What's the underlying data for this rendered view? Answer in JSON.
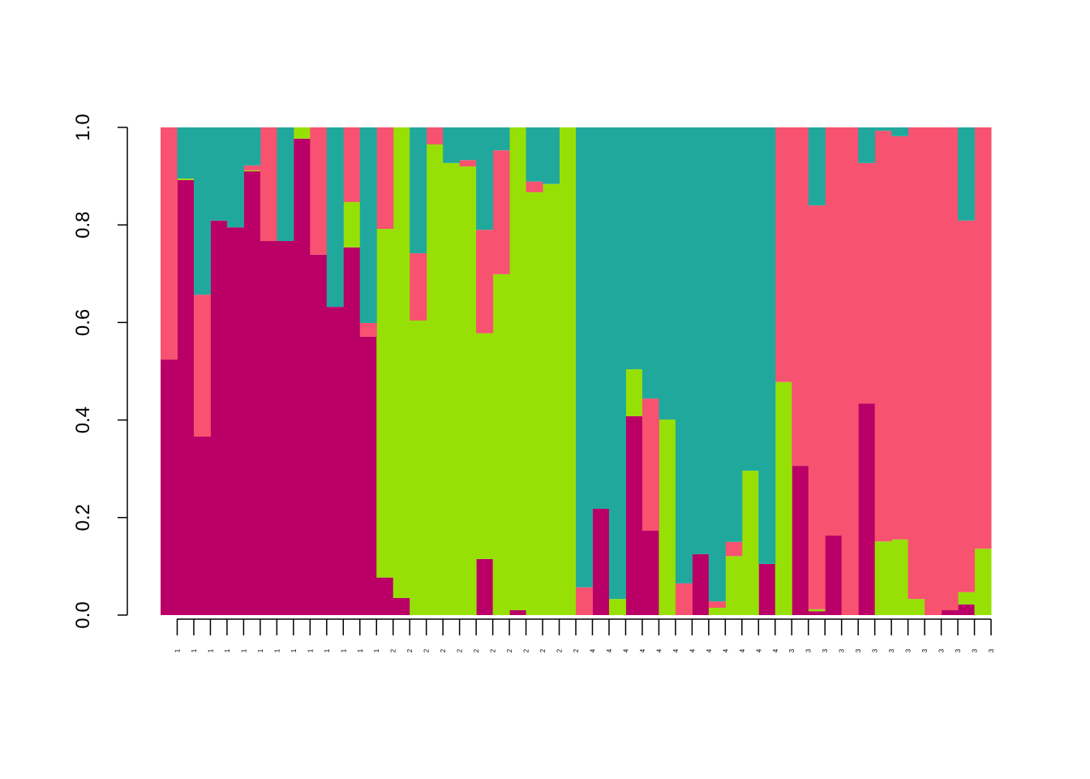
{
  "chart_data": {
    "type": "stacked_bar",
    "categories": [
      "1",
      "1",
      "1",
      "1",
      "1",
      "1",
      "1",
      "1",
      "1",
      "1",
      "1",
      "1",
      "1",
      "2",
      "2",
      "2",
      "2",
      "2",
      "2",
      "2",
      "2",
      "2",
      "2",
      "2",
      "2",
      "4",
      "4",
      "4",
      "4",
      "4",
      "4",
      "4",
      "4",
      "4",
      "4",
      "4",
      "4",
      "3",
      "3",
      "3",
      "3",
      "3",
      "3",
      "3",
      "3",
      "3",
      "3",
      "3",
      "3",
      "3"
    ],
    "series": [
      {
        "color": "#BA0066",
        "values": [
          0.524,
          0.892,
          0.366,
          0.809,
          0.795,
          0.91,
          0.767,
          0.767,
          0.977,
          0.739,
          0.632,
          0.754,
          0.571,
          0.077,
          0.035,
          0,
          0,
          0,
          0,
          0.115,
          0,
          0.01,
          0,
          0,
          0,
          0,
          0.218,
          0,
          0.408,
          0.173,
          0,
          0,
          0.125,
          0,
          0,
          0,
          0.105,
          0,
          0.306,
          0.008,
          0.163,
          0,
          0.434,
          0,
          0,
          0,
          0,
          0.01,
          0.022,
          0
        ]
      },
      {
        "color": "#97E005",
        "values": [
          0,
          0.003,
          0,
          0,
          0,
          0.002,
          0,
          0,
          0.023,
          0,
          0,
          0.093,
          0,
          0.715,
          0.965,
          0.604,
          0.965,
          0.927,
          0.92,
          0.463,
          0.699,
          0.99,
          0.867,
          0.884,
          1,
          0,
          0,
          0.033,
          0.096,
          0,
          0.401,
          0,
          0,
          0.015,
          0.121,
          0.296,
          0,
          0.478,
          0,
          0.004,
          0,
          0,
          0,
          0.151,
          0.155,
          0.033,
          0,
          0,
          0.025,
          0.136
        ]
      },
      {
        "color": "#F75270",
        "values": [
          0.476,
          0,
          0.291,
          0,
          0,
          0.01,
          0.233,
          0,
          0,
          0.261,
          0,
          0.153,
          0.028,
          0.208,
          0,
          0.138,
          0.035,
          0,
          0.013,
          0.212,
          0.254,
          0,
          0.022,
          0,
          0,
          0.057,
          0,
          0,
          0,
          0.271,
          0,
          0.065,
          0,
          0.013,
          0.029,
          0,
          0,
          0.522,
          0.694,
          0.828,
          0.837,
          1,
          0.493,
          0.842,
          0.827,
          0.967,
          1,
          0.99,
          0.762,
          0.864
        ]
      },
      {
        "color": "#21A89D",
        "values": [
          0,
          0.105,
          0.343,
          0.191,
          0.205,
          0.078,
          0,
          0.233,
          0,
          0,
          0.368,
          0,
          0.401,
          0,
          0,
          0.258,
          0,
          0.073,
          0.067,
          0.21,
          0.047,
          0,
          0.111,
          0.116,
          0,
          0.943,
          0.782,
          0.967,
          0.496,
          0.556,
          0.599,
          0.935,
          0.875,
          0.972,
          0.85,
          0.704,
          0.895,
          0,
          0,
          0.16,
          0,
          0,
          0.073,
          0.007,
          0.018,
          0,
          0,
          0,
          0.191,
          0
        ]
      }
    ],
    "ylim": [
      0,
      1
    ],
    "yticks": [
      {
        "value": 0,
        "label": "0.0"
      },
      {
        "value": 0.2,
        "label": "0.2"
      },
      {
        "value": 0.4,
        "label": "0.4"
      },
      {
        "value": 0.6,
        "label": "0.6"
      },
      {
        "value": 0.8,
        "label": "0.8"
      },
      {
        "value": 1,
        "label": "1.0"
      }
    ]
  }
}
